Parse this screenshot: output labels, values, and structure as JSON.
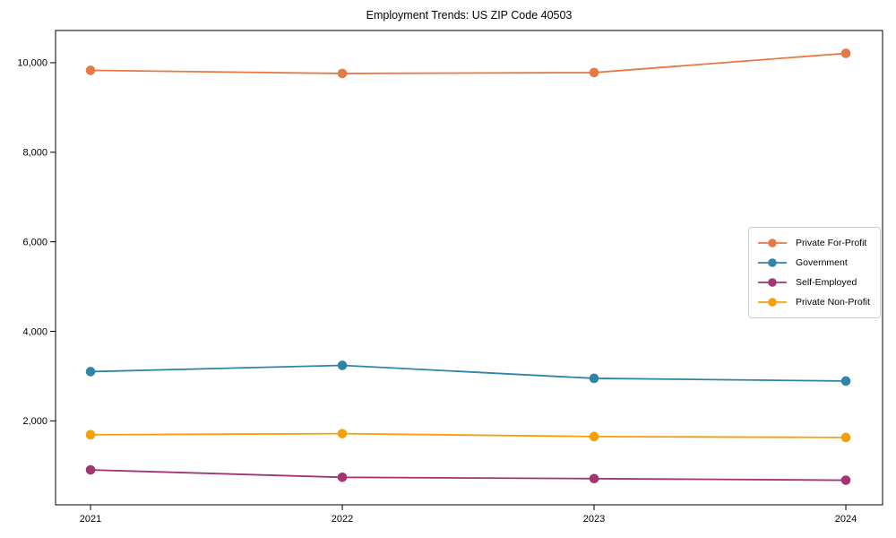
{
  "chart_data": {
    "type": "line",
    "title": "Employment Trends: US ZIP Code 40503",
    "xlabel": "",
    "ylabel": "",
    "categories": [
      "2021",
      "2022",
      "2023",
      "2024"
    ],
    "series": [
      {
        "name": "Private For-Profit",
        "color": "#E57A45",
        "values": [
          9830,
          9760,
          9780,
          10210
        ]
      },
      {
        "name": "Government",
        "color": "#2E85A6",
        "values": [
          3100,
          3240,
          2950,
          2890
        ]
      },
      {
        "name": "Self-Employed",
        "color": "#A33573",
        "values": [
          905,
          740,
          710,
          675
        ]
      },
      {
        "name": "Private Non-Profit",
        "color": "#F5A008",
        "values": [
          1690,
          1715,
          1650,
          1630
        ]
      }
    ],
    "ylim": [
      125,
      10720
    ],
    "yticks": [
      {
        "value": 2000,
        "label": "2,000"
      },
      {
        "value": 4000,
        "label": "4,000"
      },
      {
        "value": 6000,
        "label": "6,000"
      },
      {
        "value": 8000,
        "label": "8,000"
      },
      {
        "value": 10000,
        "label": "10,000"
      }
    ],
    "grid": false,
    "legend_position": "center-right",
    "marker": "circle",
    "frame_color": "#000000",
    "text_color": "#000000"
  }
}
